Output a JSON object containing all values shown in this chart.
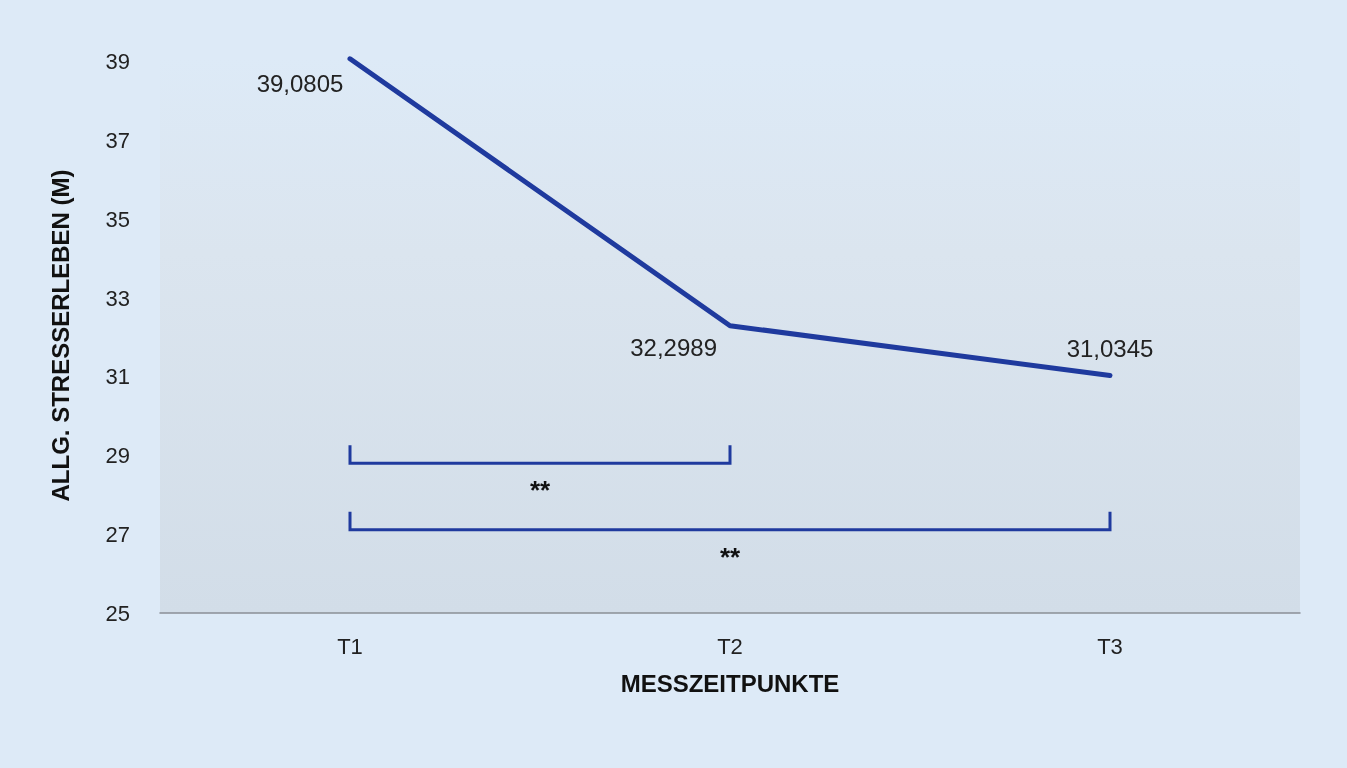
{
  "chart_data": {
    "type": "line",
    "categories": [
      "T1",
      "T2",
      "T3"
    ],
    "series": [
      {
        "color": "#1f3a9e",
        "values": [
          39.0805,
          32.2989,
          31.0345
        ],
        "value_labels": [
          "39,0805",
          "32,2989",
          "31,0345"
        ]
      }
    ],
    "xlabel": "MESSZEITPUNKTE",
    "ylabel": "ALLG. STRESSERLEBEN (M)",
    "ylim": [
      25,
      39.1
    ],
    "yticks": [
      25,
      27,
      29,
      31,
      33,
      35,
      37,
      39
    ],
    "marker": "none",
    "line_style": "solid",
    "annotations": [
      "**",
      "**"
    ]
  }
}
